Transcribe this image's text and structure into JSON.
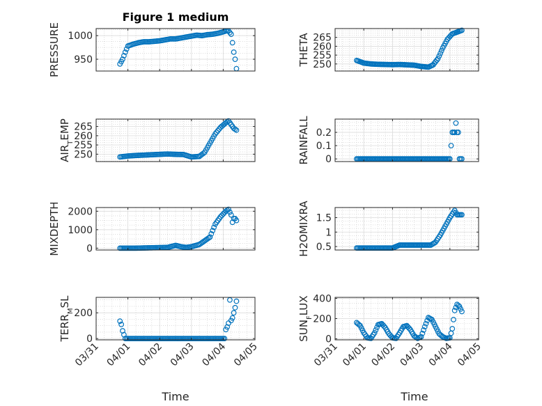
{
  "figure": {
    "title": "Figure 1 medium",
    "xlabel": "Time",
    "date_ticks": [
      "03/31",
      "04/01",
      "04/02",
      "04/03",
      "04/04",
      "04/05"
    ]
  },
  "colors": {
    "marker": "#0072BD",
    "axis": "#262626",
    "grid": "#c8c8c8",
    "background": "#ffffff"
  },
  "chart_data": [
    {
      "type": "scatter",
      "ylabel": "PRESSURE",
      "grid": true,
      "xlim": [
        "03/31",
        "04/05"
      ],
      "ylim": [
        925,
        1015
      ],
      "yticks": [
        950,
        1000
      ],
      "ytick_labels": [
        "950",
        "1000"
      ],
      "x": [
        "03/31 18:00",
        "03/31 20:00",
        "03/31 22:00",
        "04/01 00:00",
        "04/01 04:00",
        "04/01 08:00",
        "04/01 12:00",
        "04/01 16:00",
        "04/01 20:00",
        "04/02 00:00",
        "04/02 04:00",
        "04/02 08:00",
        "04/02 12:00",
        "04/02 16:00",
        "04/02 20:00",
        "04/03 00:00",
        "04/03 04:00",
        "04/03 08:00",
        "04/03 12:00",
        "04/03 16:00",
        "04/03 20:00",
        "04/04 00:00",
        "04/04 02:00",
        "04/04 04:00",
        "04/04 06:00",
        "04/04 07:00",
        "04/04 08:00",
        "04/04 09:00",
        "04/04 10:00"
      ],
      "y": [
        940,
        950,
        965,
        978,
        982,
        985,
        987,
        987,
        988,
        989,
        991,
        993,
        993,
        995,
        997,
        999,
        1001,
        1000,
        1002,
        1003,
        1005,
        1008,
        1010,
        1010,
        1003,
        985,
        965,
        950,
        930
      ]
    },
    {
      "type": "scatter",
      "ylabel": "THETA",
      "grid": true,
      "xlim": [
        "03/31",
        "04/05"
      ],
      "ylim": [
        246,
        270
      ],
      "yticks": [
        250,
        255,
        260,
        265
      ],
      "ytick_labels": [
        "250",
        "255",
        "260",
        "265"
      ],
      "x": [
        "03/31 18:00",
        "04/01 00:00",
        "04/01 06:00",
        "04/01 12:00",
        "04/01 18:00",
        "04/02 00:00",
        "04/02 06:00",
        "04/02 12:00",
        "04/02 18:00",
        "04/03 00:00",
        "04/03 06:00",
        "04/03 10:00",
        "04/03 14:00",
        "04/03 18:00",
        "04/03 22:00",
        "04/04 02:00",
        "04/04 06:00",
        "04/04 10:00"
      ],
      "y": [
        252,
        250.5,
        250,
        249.8,
        249.7,
        249.6,
        249.7,
        249.5,
        249.3,
        248.6,
        248.2,
        249.5,
        253,
        259,
        264,
        267,
        268,
        269
      ]
    },
    {
      "type": "scatter",
      "ylabel": "AIR_TEMP",
      "grid": true,
      "xlim": [
        "03/31",
        "04/05"
      ],
      "ylim": [
        246,
        269
      ],
      "yticks": [
        250,
        255,
        260,
        265
      ],
      "ytick_labels": [
        "250",
        "255",
        "260",
        "265"
      ],
      "x": [
        "03/31 18:00",
        "04/01 00:00",
        "04/01 06:00",
        "04/01 12:00",
        "04/01 18:00",
        "04/02 00:00",
        "04/02 06:00",
        "04/02 12:00",
        "04/02 18:00",
        "04/03 00:00",
        "04/03 06:00",
        "04/03 10:00",
        "04/03 14:00",
        "04/03 18:00",
        "04/03 22:00",
        "04/04 02:00",
        "04/04 04:00",
        "04/04 06:00",
        "04/04 08:00",
        "04/04 10:00"
      ],
      "y": [
        248.5,
        249,
        249.3,
        249.5,
        249.7,
        249.9,
        250.1,
        249.9,
        249.8,
        248.5,
        248.8,
        251,
        256,
        261,
        264.5,
        267,
        268,
        266,
        264,
        263
      ]
    },
    {
      "type": "scatter",
      "ylabel": "RAINFALL",
      "grid": true,
      "xlim": [
        "03/31",
        "04/05"
      ],
      "ylim": [
        -0.02,
        0.3
      ],
      "yticks": [
        0,
        0.1,
        0.2
      ],
      "ytick_labels": [
        "0",
        "0.1",
        "0.2"
      ],
      "x": [
        "03/31 18:00",
        "04/01 00:00",
        "04/01 12:00",
        "04/02 00:00",
        "04/02 12:00",
        "04/03 00:00",
        "04/03 12:00",
        "04/04 00:00",
        "04/04 02:00",
        "04/04 04:00",
        "04/04 05:00",
        "04/04 06:00",
        "04/04 07:00",
        "04/04 08:00",
        "04/04 09:00",
        "04/04 10:00"
      ],
      "y": [
        0,
        0,
        0,
        0,
        0,
        0,
        0,
        0,
        0.2,
        0.2,
        0.27,
        0.2,
        0.2,
        0,
        0,
        0
      ]
    },
    {
      "type": "scatter",
      "ylabel": "MIXDEPTH",
      "grid": true,
      "xlim": [
        "03/31",
        "04/05"
      ],
      "ylim": [
        -100,
        2200
      ],
      "yticks": [
        0,
        1000,
        2000
      ],
      "ytick_labels": [
        "0",
        "1000",
        "2000"
      ],
      "x": [
        "03/31 18:00",
        "04/01 00:00",
        "04/01 06:00",
        "04/01 12:00",
        "04/01 18:00",
        "04/02 00:00",
        "04/02 06:00",
        "04/02 12:00",
        "04/02 16:00",
        "04/02 20:00",
        "04/03 00:00",
        "04/03 06:00",
        "04/03 10:00",
        "04/03 14:00",
        "04/03 18:00",
        "04/03 22:00",
        "04/04 02:00",
        "04/04 04:00",
        "04/04 06:00",
        "04/04 07:00",
        "04/04 08:00",
        "04/04 09:00",
        "04/04 10:00"
      ],
      "y": [
        0,
        0,
        0,
        10,
        20,
        30,
        40,
        150,
        80,
        40,
        80,
        200,
        400,
        600,
        1300,
        1700,
        2000,
        2100,
        1800,
        1400,
        1600,
        1600,
        1500
      ]
    },
    {
      "type": "scatter",
      "ylabel": "H2OMIXRA",
      "grid": true,
      "xlim": [
        "03/31",
        "04/05"
      ],
      "ylim": [
        0.38,
        1.85
      ],
      "yticks": [
        0.5,
        1,
        1.5
      ],
      "ytick_labels": [
        "0.5",
        "1",
        "1.5"
      ],
      "x": [
        "03/31 18:00",
        "04/01 00:00",
        "04/01 12:00",
        "04/02 00:00",
        "04/02 06:00",
        "04/02 12:00",
        "04/03 00:00",
        "04/03 08:00",
        "04/03 12:00",
        "04/03 16:00",
        "04/03 20:00",
        "04/04 00:00",
        "04/04 04:00",
        "04/04 06:00",
        "04/04 08:00",
        "04/04 10:00"
      ],
      "y": [
        0.45,
        0.45,
        0.45,
        0.45,
        0.55,
        0.55,
        0.55,
        0.55,
        0.65,
        0.9,
        1.2,
        1.5,
        1.75,
        1.6,
        1.6,
        1.6
      ]
    },
    {
      "type": "scatter",
      "ylabel": "TERR_MSL",
      "grid": true,
      "xlim": [
        "03/31",
        "04/05"
      ],
      "ylim": [
        -10,
        320
      ],
      "yticks": [
        0,
        200
      ],
      "ytick_labels": [
        "0",
        "200"
      ],
      "x": [
        "03/31 18:00",
        "03/31 19:00",
        "03/31 20:00",
        "03/31 21:00",
        "03/31 22:00",
        "04/01 00:00",
        "04/01 12:00",
        "04/02 00:00",
        "04/02 12:00",
        "04/03 00:00",
        "04/03 12:00",
        "04/04 00:00",
        "04/04 01:00",
        "04/04 02:00",
        "04/04 03:00",
        "04/04 04:00",
        "04/04 05:00",
        "04/04 06:00",
        "04/04 07:00",
        "04/04 08:00",
        "04/04 09:00",
        "04/04 10:00"
      ],
      "y": [
        135,
        110,
        60,
        30,
        0,
        0,
        0,
        0,
        0,
        0,
        0,
        0,
        0,
        70,
        90,
        120,
        300,
        140,
        160,
        200,
        240,
        290
      ]
    },
    {
      "type": "scatter",
      "ylabel": "SUN_FLUX",
      "grid": true,
      "xlim": [
        "03/31",
        "04/05"
      ],
      "ylim": [
        -10,
        410
      ],
      "yticks": [
        0,
        200,
        400
      ],
      "ytick_labels": [
        "0",
        "200",
        "400"
      ],
      "x": [
        "03/31 18:00",
        "03/31 21:00",
        "04/01 00:00",
        "04/01 03:00",
        "04/01 06:00",
        "04/01 09:00",
        "04/01 12:00",
        "04/01 15:00",
        "04/01 18:00",
        "04/01 21:00",
        "04/02 00:00",
        "04/02 03:00",
        "04/02 06:00",
        "04/02 09:00",
        "04/02 12:00",
        "04/02 15:00",
        "04/02 18:00",
        "04/02 21:00",
        "04/03 00:00",
        "04/03 03:00",
        "04/03 06:00",
        "04/03 09:00",
        "04/03 12:00",
        "04/03 15:00",
        "04/03 18:00",
        "04/03 21:00",
        "04/04 00:00",
        "04/04 02:00",
        "04/04 04:00",
        "04/04 06:00",
        "04/04 08:00",
        "04/04 10:00"
      ],
      "y": [
        160,
        130,
        60,
        10,
        5,
        60,
        140,
        150,
        110,
        50,
        10,
        5,
        60,
        120,
        130,
        90,
        30,
        5,
        20,
        120,
        210,
        190,
        120,
        50,
        20,
        5,
        10,
        100,
        280,
        340,
        320,
        270
      ]
    }
  ]
}
